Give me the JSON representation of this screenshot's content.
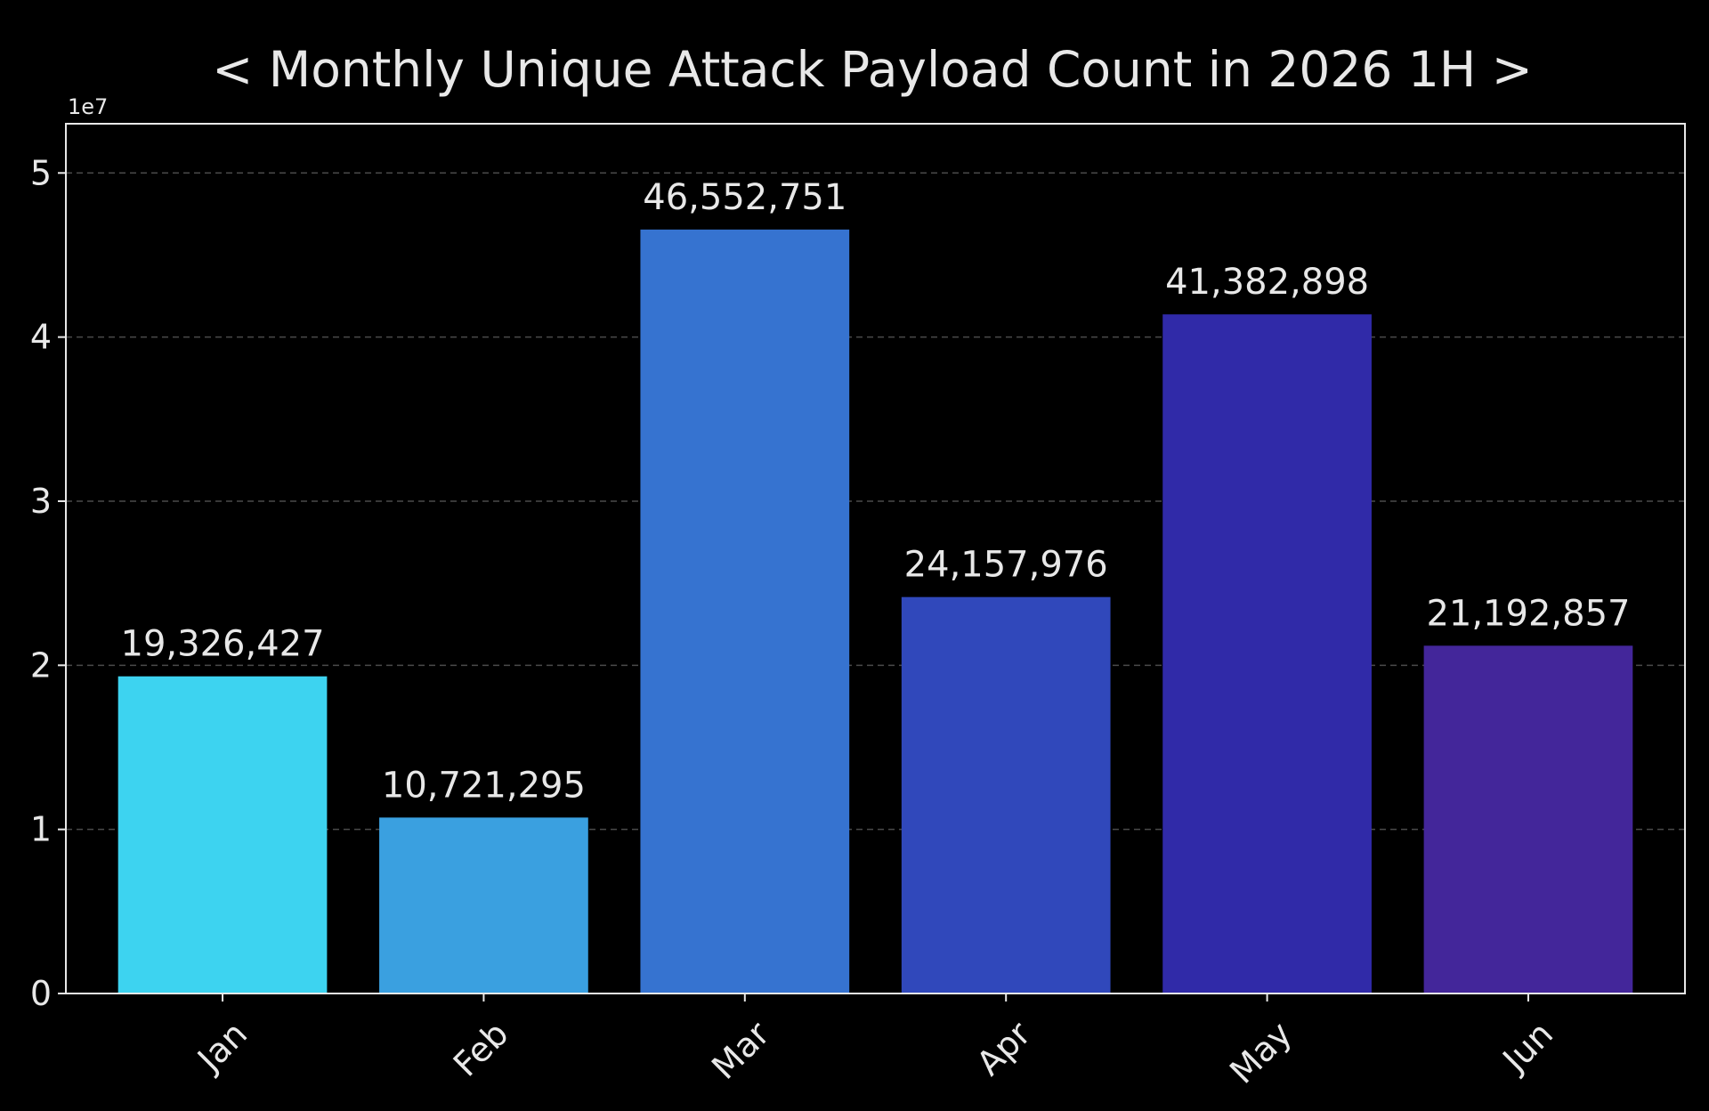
{
  "chart_data": {
    "type": "bar",
    "title": "< Monthly Unique Attack Payload Count in 2026 1H >",
    "xlabel": "",
    "ylabel": "",
    "categories": [
      "Jan",
      "Feb",
      "Mar",
      "Apr",
      "May",
      "Jun"
    ],
    "values": [
      19326427,
      10721295,
      46552751,
      24157976,
      41382898,
      21192857
    ],
    "value_labels": [
      "19,326,427",
      "10,721,295",
      "46,552,751",
      "24,157,976",
      "41,382,898",
      "21,192,857"
    ],
    "colors": [
      "#3dd3f0",
      "#3aa0e0",
      "#3673d0",
      "#3048bb",
      "#302aa8",
      "#43269a"
    ],
    "ylim": [
      0,
      53000000
    ],
    "yticks": [
      0,
      10000000,
      20000000,
      30000000,
      40000000,
      50000000
    ],
    "ytick_labels": [
      "0",
      "1",
      "2",
      "3",
      "4",
      "5"
    ],
    "y_offset_label": "1e7",
    "grid": true,
    "xtick_rotation": "45deg",
    "background": "#000000",
    "text_color": "#e8e8e8"
  }
}
